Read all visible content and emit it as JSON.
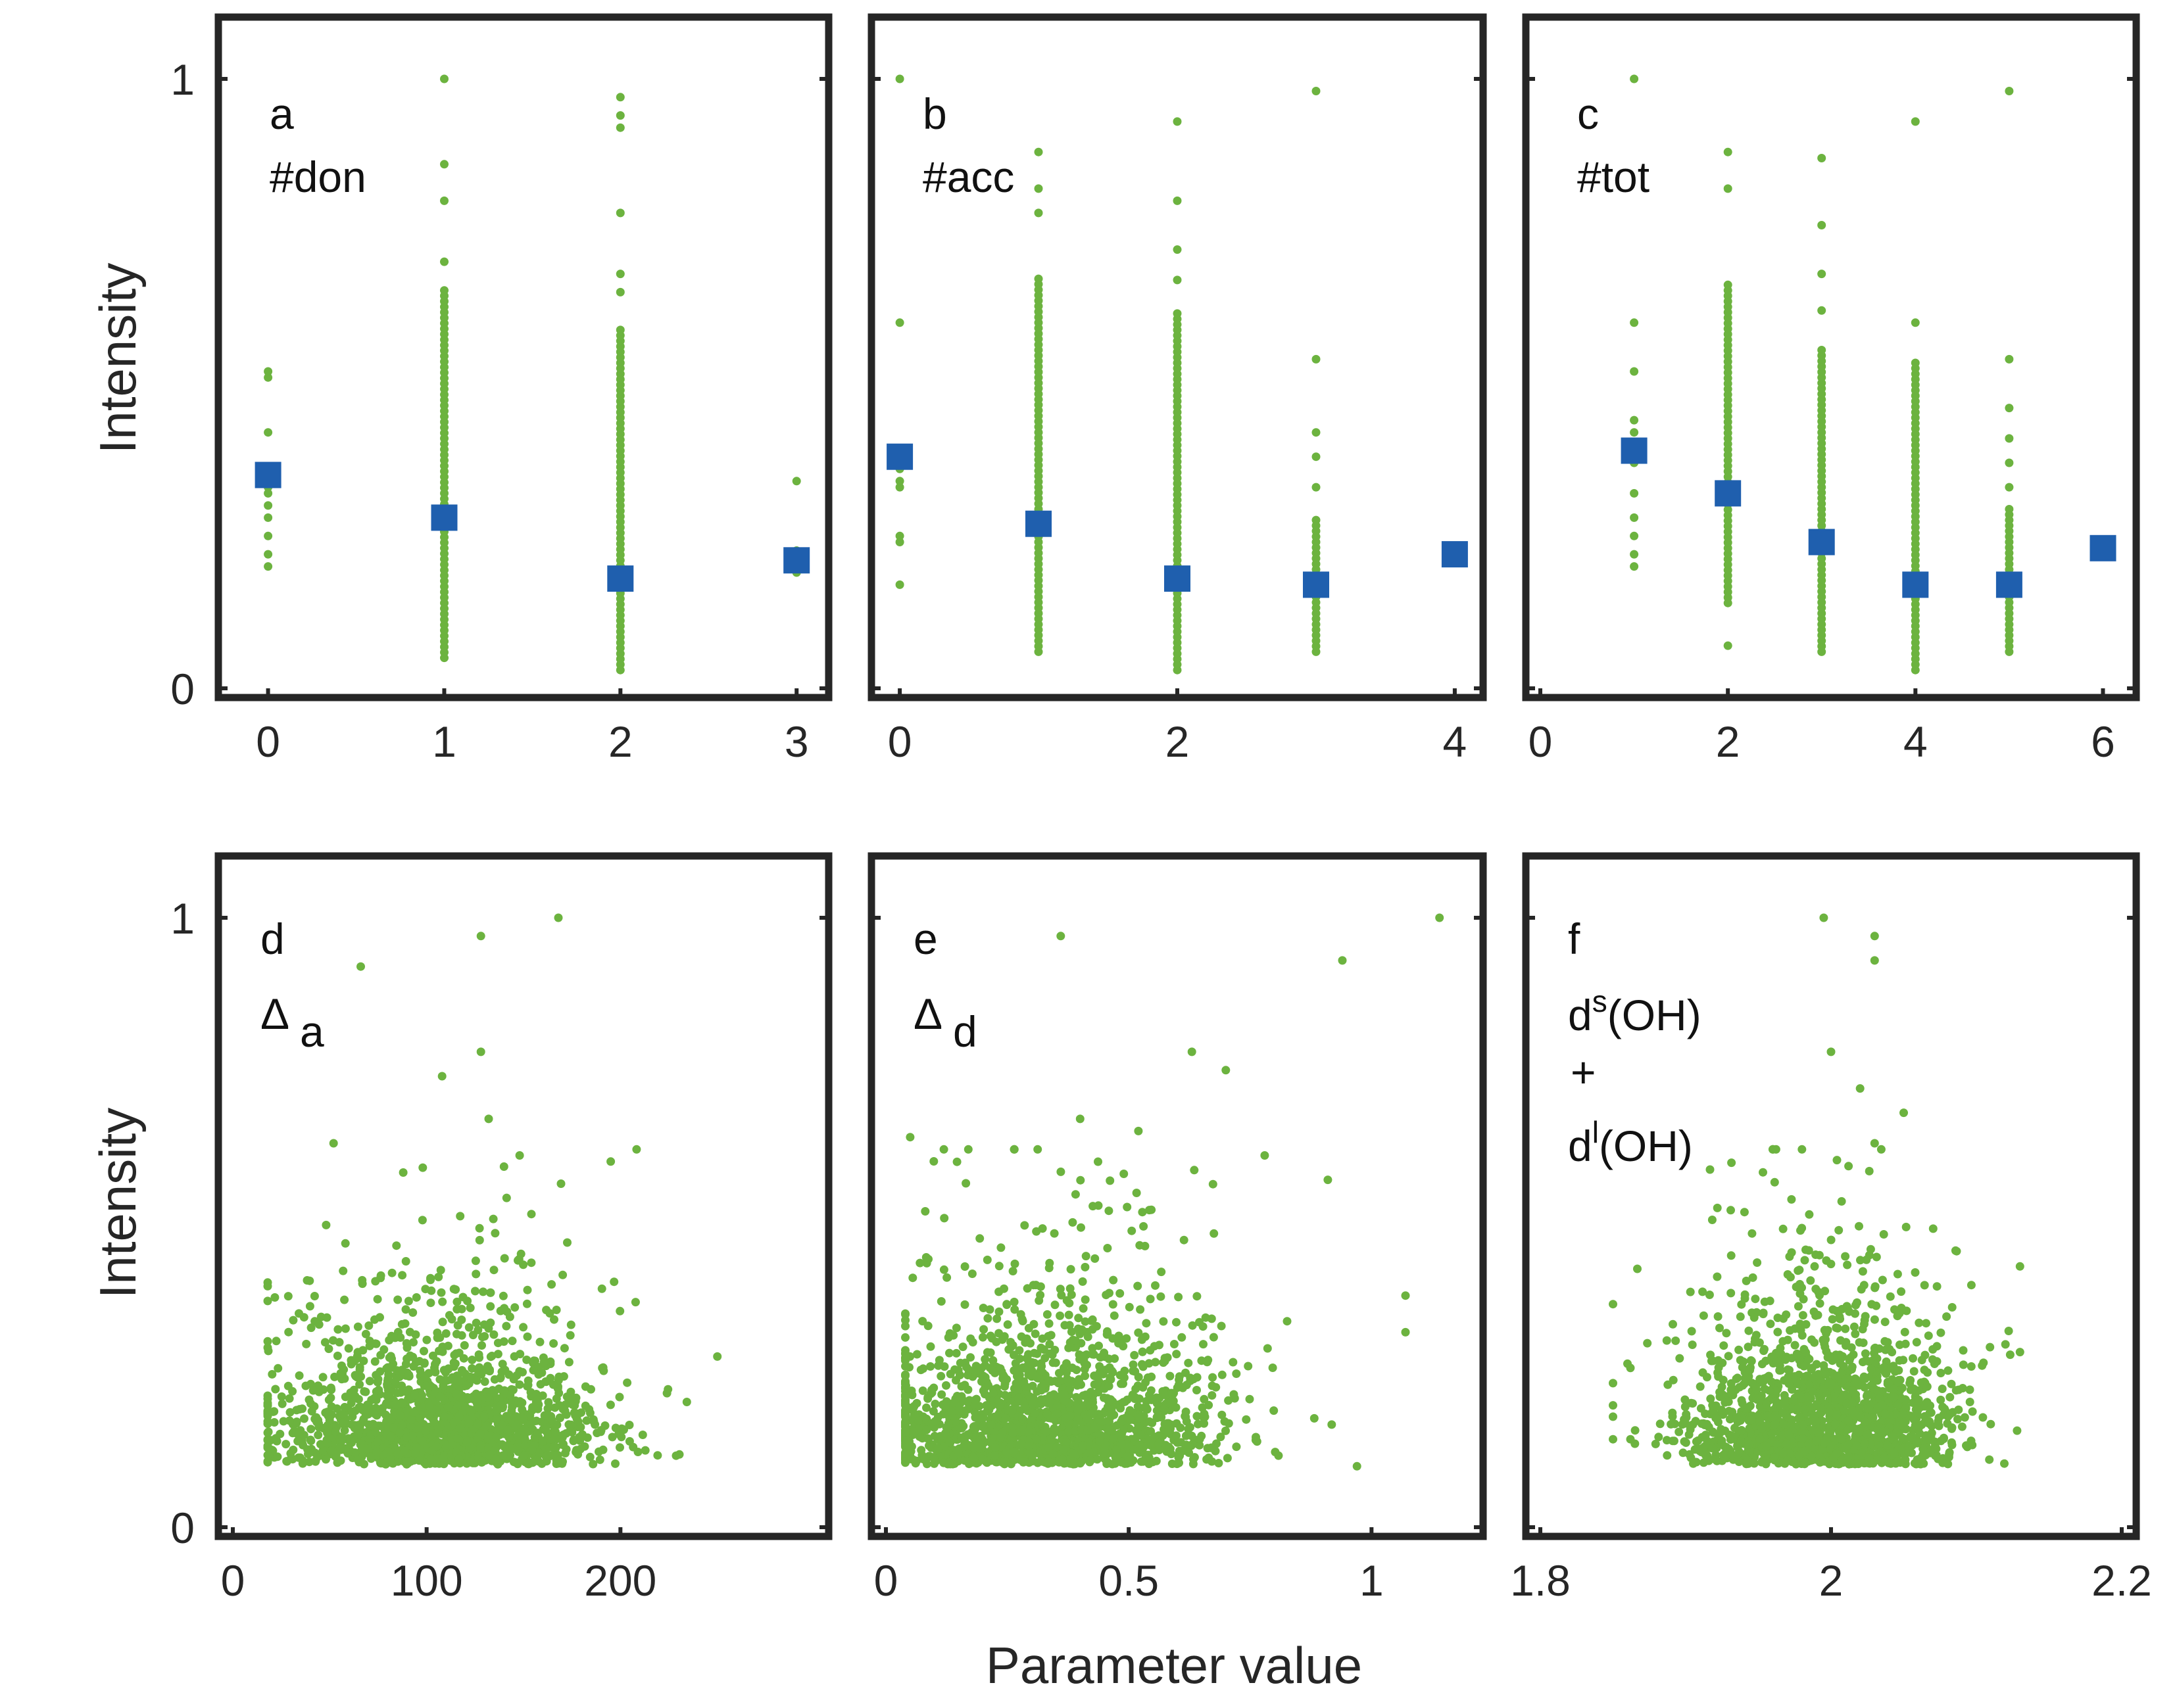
{
  "figure": {
    "ylabel": "Intensity",
    "xlabel": "Parameter value"
  },
  "colors": {
    "points": "#6cb33f",
    "means": "#1f5fae",
    "frame": "#262626"
  },
  "chart_data": [
    {
      "panel": "a",
      "annotation": [
        "#don"
      ],
      "type": "scatter",
      "xlim": [
        -0.2,
        3.1
      ],
      "ylim": [
        0,
        1.1
      ],
      "xticks": [
        "0",
        "1",
        "2",
        "3"
      ],
      "yticks": [
        "0",
        "1"
      ],
      "means": {
        "x": [
          0,
          1,
          2,
          3
        ],
        "y": [
          0.35,
          0.28,
          0.18,
          0.21
        ]
      },
      "point_columns": [
        {
          "x": 0,
          "values": [
            0.2,
            0.22,
            0.25,
            0.28,
            0.3,
            0.32,
            0.33,
            0.34,
            0.36,
            0.42,
            0.51,
            0.52
          ]
        },
        {
          "x": 1,
          "min": 0.05,
          "max": 0.66,
          "extra": [
            0.7,
            0.8,
            0.86,
            1.0
          ]
        },
        {
          "x": 2,
          "min": 0.03,
          "max": 0.59,
          "extra": [
            0.65,
            0.68,
            0.78,
            0.92,
            0.94,
            0.97
          ]
        },
        {
          "x": 3,
          "min": 0.19,
          "max": 0.23,
          "extra": [
            0.34
          ]
        }
      ]
    },
    {
      "panel": "b",
      "annotation": [
        "#acc"
      ],
      "type": "scatter",
      "xlim": [
        -0.1,
        4.1
      ],
      "ylim": [
        0,
        1.1
      ],
      "xticks": [
        "0",
        "2",
        "4"
      ],
      "yticks": [],
      "means": {
        "x": [
          0,
          1,
          2,
          3,
          4
        ],
        "y": [
          0.38,
          0.27,
          0.18,
          0.17,
          0.22
        ]
      },
      "point_columns": [
        {
          "x": 0,
          "values": [
            0.17,
            0.24,
            0.25,
            0.33,
            0.34,
            0.36,
            0.39,
            0.6,
            1.0
          ]
        },
        {
          "x": 1,
          "min": 0.06,
          "max": 0.68,
          "extra": [
            0.78,
            0.82,
            0.88
          ]
        },
        {
          "x": 2,
          "min": 0.03,
          "max": 0.62,
          "extra": [
            0.67,
            0.72,
            0.8,
            0.93
          ]
        },
        {
          "x": 3,
          "min": 0.06,
          "max": 0.28,
          "extra": [
            0.33,
            0.38,
            0.42,
            0.54,
            0.98
          ]
        }
      ]
    },
    {
      "panel": "c",
      "annotation": [
        "#tot"
      ],
      "type": "scatter",
      "xlim": [
        0,
        6.2
      ],
      "ylim": [
        0,
        1.1
      ],
      "xticks": [
        "0",
        "2",
        "4",
        "6"
      ],
      "yticks": [],
      "means": {
        "x": [
          1,
          2,
          3,
          4,
          5,
          6
        ],
        "y": [
          0.39,
          0.32,
          0.24,
          0.17,
          0.17,
          0.23
        ]
      },
      "point_columns": [
        {
          "x": 1,
          "values": [
            0.2,
            0.22,
            0.25,
            0.28,
            0.32,
            0.37,
            0.39,
            0.42,
            0.44,
            0.52,
            0.6,
            1.0
          ]
        },
        {
          "x": 2,
          "min": 0.14,
          "max": 0.67,
          "extra": [
            0.07,
            0.82,
            0.88
          ]
        },
        {
          "x": 3,
          "min": 0.06,
          "max": 0.56,
          "extra": [
            0.62,
            0.68,
            0.76,
            0.87
          ]
        },
        {
          "x": 4,
          "min": 0.03,
          "max": 0.54,
          "extra": [
            0.6,
            0.93
          ]
        },
        {
          "x": 5,
          "min": 0.06,
          "max": 0.3,
          "extra": [
            0.33,
            0.37,
            0.41,
            0.46,
            0.54,
            0.98
          ]
        }
      ]
    },
    {
      "panel": "d",
      "annotation": [
        "d",
        "Δ",
        "a"
      ],
      "type": "scatter",
      "xlim": [
        0,
        300
      ],
      "ylim": [
        0,
        1.1
      ],
      "xticks": [
        "0",
        "100",
        "200"
      ],
      "yticks": [
        "0",
        "1"
      ],
      "cloud": {
        "count": 1700,
        "center": [
          108,
          0.15
        ],
        "spread": [
          42,
          0.085
        ],
        "xrange": [
          18,
          250
        ]
      },
      "outliers": [
        [
          66,
          0.92
        ],
        [
          128,
          0.97
        ],
        [
          168,
          1.0
        ],
        [
          108,
          0.74
        ],
        [
          128,
          0.78
        ],
        [
          132,
          0.67
        ],
        [
          148,
          0.61
        ],
        [
          52,
          0.63
        ],
        [
          98,
          0.59
        ],
        [
          195,
          0.6
        ],
        [
          250,
          0.28
        ],
        [
          224,
          0.22
        ]
      ]
    },
    {
      "panel": "e",
      "annotation": [
        "e",
        "Δ",
        "d"
      ],
      "type": "scatter",
      "xlim": [
        0,
        1.2
      ],
      "ylim": [
        0,
        1.1
      ],
      "xticks": [
        "0",
        "0.5",
        "1"
      ],
      "yticks": [],
      "cloud": {
        "count": 1700,
        "center": [
          0.33,
          0.15
        ],
        "spread": [
          0.18,
          0.085
        ],
        "xrange": [
          0.04,
          1.12
        ]
      },
      "outliers": [
        [
          0.36,
          0.97
        ],
        [
          0.94,
          0.93
        ],
        [
          1.14,
          1.0
        ],
        [
          0.63,
          0.78
        ],
        [
          0.7,
          0.75
        ],
        [
          0.05,
          0.64
        ],
        [
          0.4,
          0.67
        ],
        [
          0.52,
          0.65
        ],
        [
          0.78,
          0.61
        ],
        [
          0.91,
          0.57
        ],
        [
          1.07,
          0.38
        ],
        [
          1.07,
          0.32
        ],
        [
          0.97,
          0.1
        ]
      ]
    },
    {
      "panel": "f",
      "annotation": [
        "f",
        "d",
        "s",
        "(OH)",
        "+",
        "d",
        "l",
        "(OH)"
      ],
      "type": "scatter",
      "xlim": [
        1.8,
        2.2
      ],
      "xticks": [
        "1.8",
        "2",
        "2.2"
      ],
      "ylim": [
        0,
        1.1
      ],
      "yticks": [],
      "cloud": {
        "count": 1700,
        "center": [
          1.995,
          0.15
        ],
        "spread": [
          0.047,
          0.085
        ],
        "xrange": [
          1.85,
          2.13
        ]
      },
      "outliers": [
        [
          1.995,
          1.0
        ],
        [
          2.03,
          0.97
        ],
        [
          2.03,
          0.93
        ],
        [
          2.0,
          0.78
        ],
        [
          2.02,
          0.72
        ],
        [
          2.05,
          0.68
        ],
        [
          1.98,
          0.62
        ],
        [
          2.03,
          0.63
        ],
        [
          1.85,
          0.2
        ],
        [
          2.12,
          0.3
        ]
      ]
    }
  ]
}
